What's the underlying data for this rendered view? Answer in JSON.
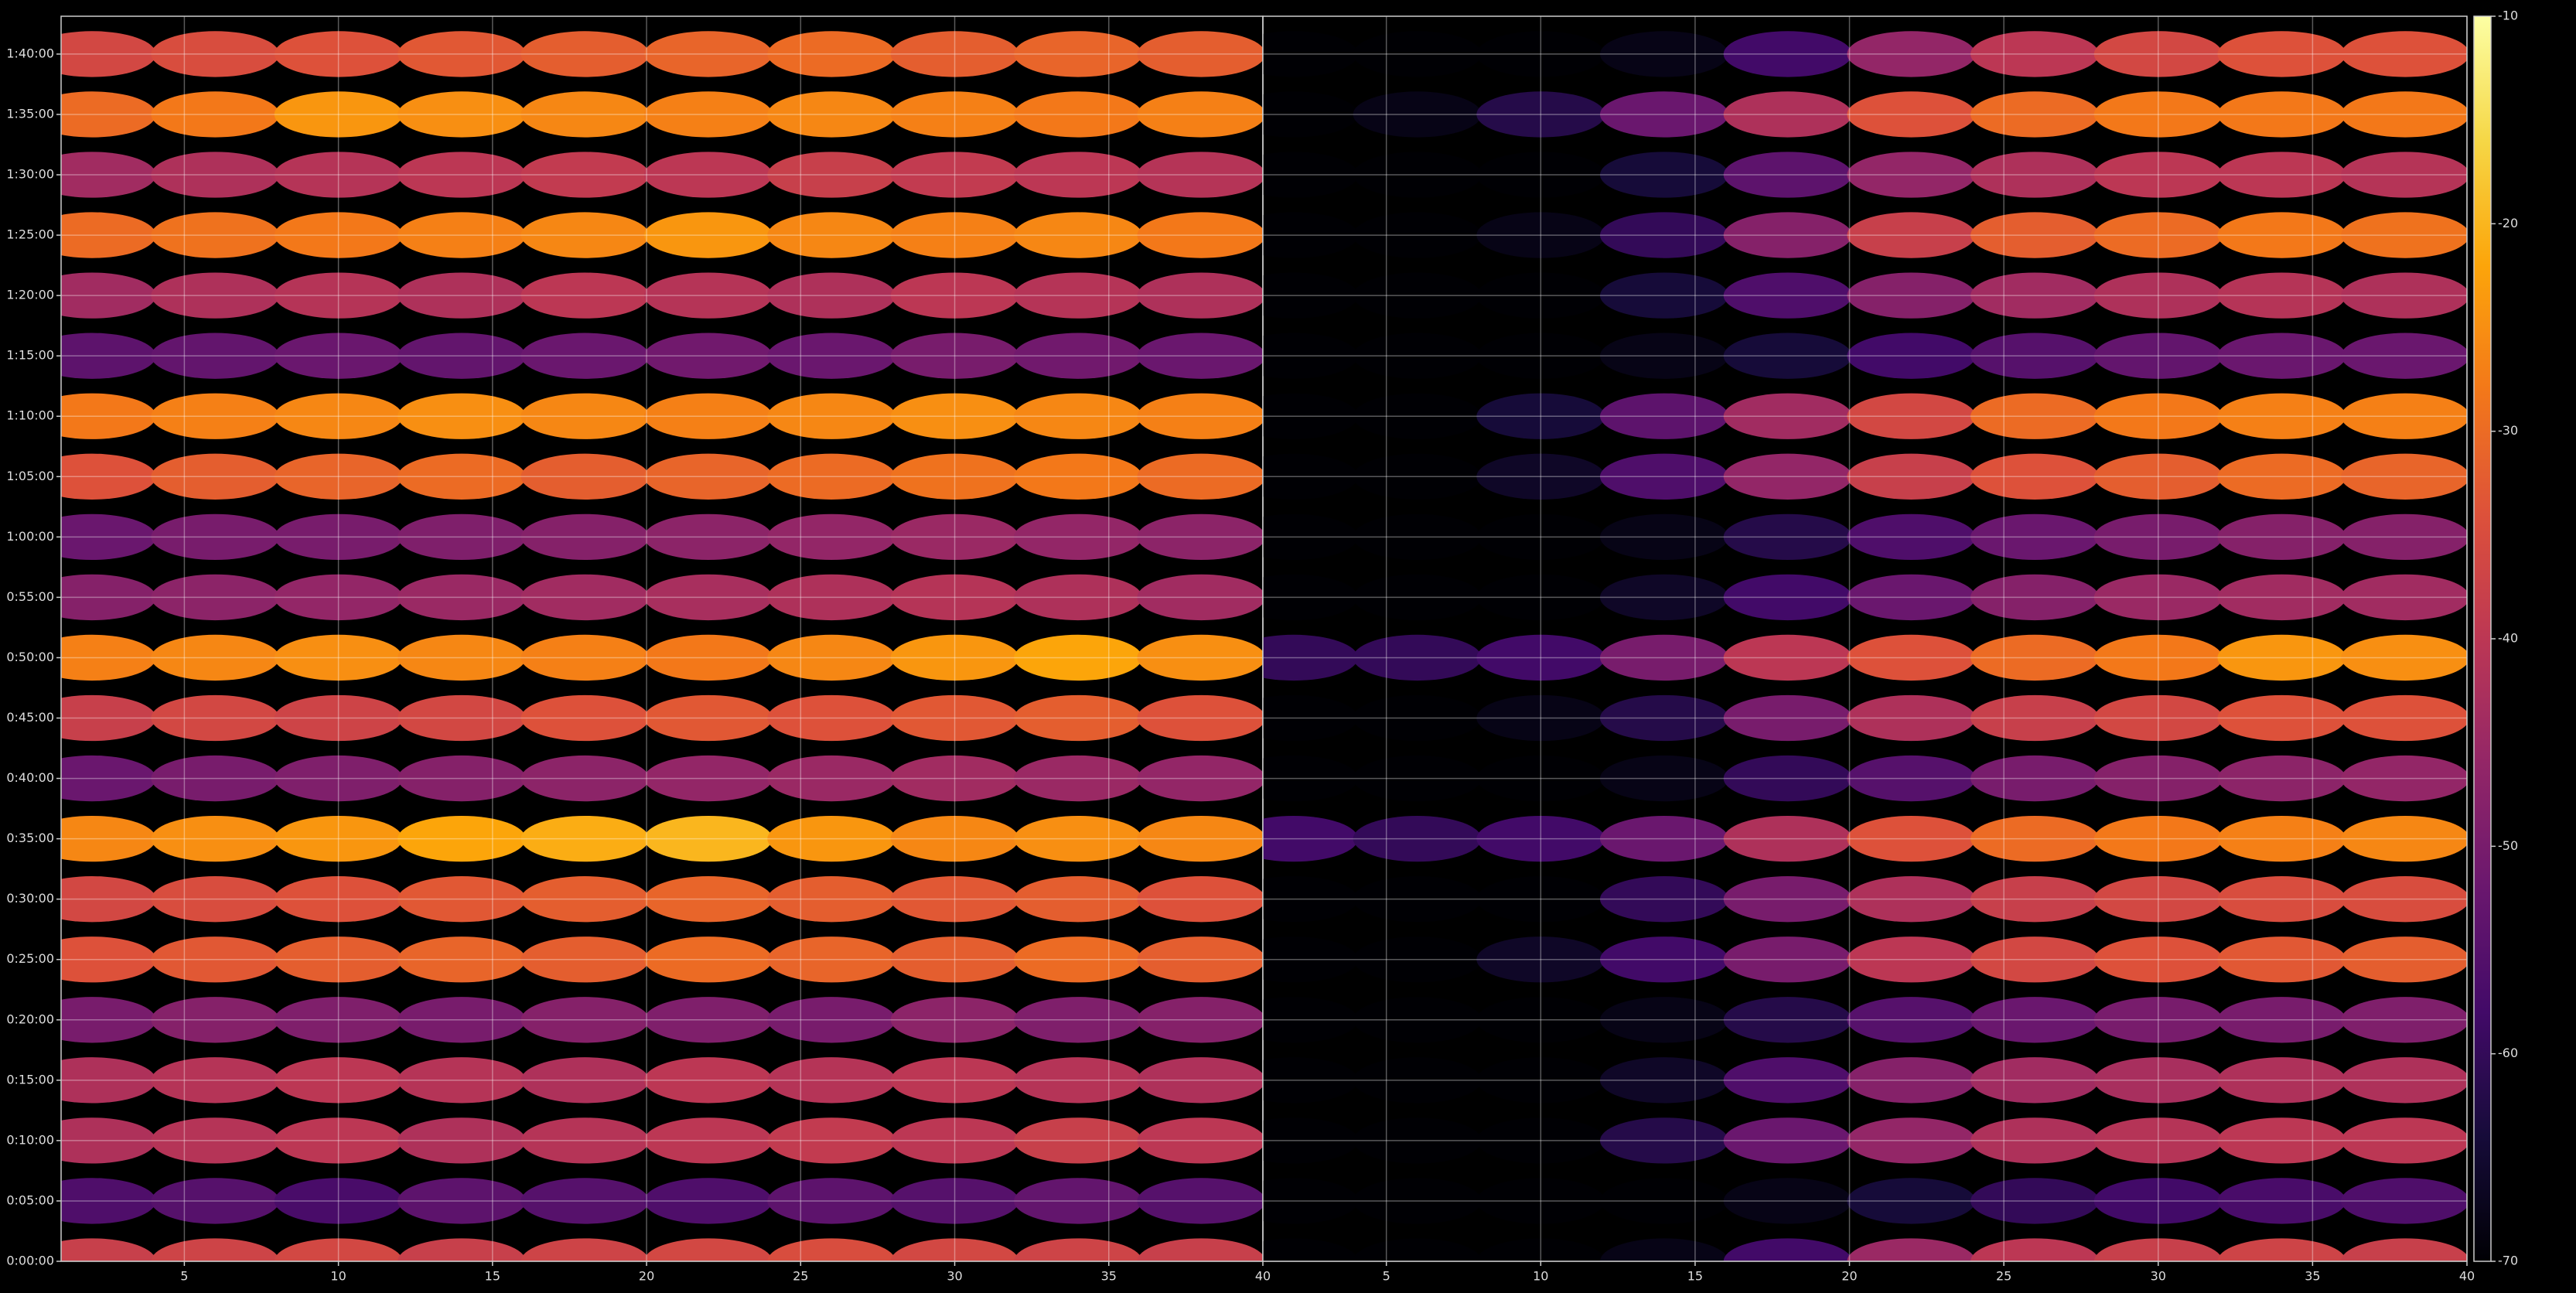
{
  "chart_data": [
    {
      "type": "heatmap",
      "x": [
        2,
        6,
        10,
        14,
        18,
        22,
        26,
        30,
        34,
        38
      ],
      "y": [
        0,
        300,
        600,
        900,
        1200,
        1500,
        1800,
        2100,
        2400,
        2700,
        3000,
        3300,
        3600,
        3900,
        4200,
        4500,
        4800,
        5100,
        5400,
        5700,
        6000
      ],
      "values": [
        [
          -38,
          -37,
          -36,
          -38,
          -37,
          -36,
          -35,
          -36,
          -37,
          -38
        ],
        [
          -56,
          -55,
          -57,
          -54,
          -55,
          -56,
          -54,
          -55,
          -53,
          -55
        ],
        [
          -42,
          -41,
          -40,
          -42,
          -41,
          -40,
          -39,
          -40,
          -38,
          -40
        ],
        [
          -42,
          -41,
          -40,
          -41,
          -42,
          -40,
          -41,
          -40,
          -41,
          -42
        ],
        [
          -50,
          -48,
          -49,
          -50,
          -48,
          -49,
          -50,
          -47,
          -49,
          -48
        ],
        [
          -34,
          -33,
          -32,
          -31,
          -32,
          -30,
          -31,
          -32,
          -30,
          -32
        ],
        [
          -36,
          -35,
          -34,
          -33,
          -32,
          -31,
          -32,
          -33,
          -32,
          -34
        ],
        [
          -26,
          -25,
          -24,
          -22,
          -21,
          -20,
          -24,
          -26,
          -25,
          -26
        ],
        [
          -52,
          -50,
          -49,
          -48,
          -47,
          -46,
          -45,
          -44,
          -45,
          -46
        ],
        [
          -38,
          -36,
          -37,
          -36,
          -34,
          -33,
          -34,
          -33,
          -32,
          -34
        ],
        [
          -27,
          -26,
          -25,
          -26,
          -27,
          -28,
          -26,
          -24,
          -22,
          -25
        ],
        [
          -48,
          -47,
          -46,
          -45,
          -44,
          -43,
          -42,
          -41,
          -42,
          -44
        ],
        [
          -52,
          -50,
          -50,
          -49,
          -48,
          -47,
          -46,
          -45,
          -46,
          -47
        ],
        [
          -34,
          -32,
          -31,
          -30,
          -32,
          -31,
          -30,
          -29,
          -28,
          -30
        ],
        [
          -28,
          -27,
          -26,
          -25,
          -26,
          -27,
          -26,
          -25,
          -26,
          -27
        ],
        [
          -54,
          -53,
          -52,
          -53,
          -52,
          -51,
          -52,
          -50,
          -51,
          -52
        ],
        [
          -44,
          -42,
          -41,
          -42,
          -40,
          -41,
          -42,
          -40,
          -41,
          -42
        ],
        [
          -30,
          -29,
          -28,
          -27,
          -26,
          -24,
          -26,
          -27,
          -26,
          -28
        ],
        [
          -44,
          -42,
          -41,
          -40,
          -39,
          -40,
          -38,
          -39,
          -40,
          -41
        ],
        [
          -30,
          -28,
          -24,
          -25,
          -26,
          -27,
          -26,
          -27,
          -28,
          -27
        ],
        [
          -36,
          -35,
          -34,
          -33,
          -32,
          -31,
          -30,
          -32,
          -31,
          -32
        ]
      ],
      "xlim": [
        1,
        40
      ],
      "xticks": [
        5,
        10,
        15,
        20,
        25,
        30,
        35,
        40
      ],
      "ylim": [
        0,
        6188
      ],
      "yticks": [
        {
          "value": 0,
          "label": "0:00:00"
        },
        {
          "value": 300,
          "label": "0:05:00"
        },
        {
          "value": 600,
          "label": "0:10:00"
        },
        {
          "value": 900,
          "label": "0:15:00"
        },
        {
          "value": 1200,
          "label": "0:20:00"
        },
        {
          "value": 1500,
          "label": "0:25:00"
        },
        {
          "value": 1800,
          "label": "0:30:00"
        },
        {
          "value": 2100,
          "label": "0:35:00"
        },
        {
          "value": 2400,
          "label": "0:40:00"
        },
        {
          "value": 2700,
          "label": "0:45:00"
        },
        {
          "value": 3000,
          "label": "0:50:00"
        },
        {
          "value": 3300,
          "label": "0:55:00"
        },
        {
          "value": 3600,
          "label": "1:00:00"
        },
        {
          "value": 3900,
          "label": "1:05:00"
        },
        {
          "value": 4200,
          "label": "1:10:00"
        },
        {
          "value": 4500,
          "label": "1:15:00"
        },
        {
          "value": 4800,
          "label": "1:20:00"
        },
        {
          "value": 5100,
          "label": "1:25:00"
        },
        {
          "value": 5400,
          "label": "1:30:00"
        },
        {
          "value": 5700,
          "label": "1:35:00"
        },
        {
          "value": 6000,
          "label": "1:40:00"
        }
      ],
      "grid": true,
      "cmap": "inferno",
      "clim": [
        -70,
        -10
      ]
    },
    {
      "type": "heatmap",
      "x": [
        2,
        6,
        10,
        14,
        18,
        22,
        26,
        30,
        34,
        38
      ],
      "y": [
        0,
        300,
        600,
        900,
        1200,
        1500,
        1800,
        2100,
        2400,
        2700,
        3000,
        3300,
        3600,
        3900,
        4200,
        4500,
        4800,
        5100,
        5400,
        5700,
        6000
      ],
      "values": [
        [
          -70,
          -70,
          -70,
          -68,
          -58,
          -45,
          -40,
          -38,
          -37,
          -38
        ],
        [
          -70,
          -70,
          -70,
          -70,
          -68,
          -64,
          -60,
          -58,
          -57,
          -56
        ],
        [
          -70,
          -70,
          -70,
          -62,
          -52,
          -46,
          -42,
          -41,
          -40,
          -40
        ],
        [
          -70,
          -70,
          -70,
          -66,
          -56,
          -48,
          -44,
          -43,
          -42,
          -42
        ],
        [
          -70,
          -70,
          -70,
          -68,
          -62,
          -55,
          -52,
          -50,
          -50,
          -49
        ],
        [
          -70,
          -70,
          -66,
          -58,
          -50,
          -40,
          -36,
          -34,
          -33,
          -32
        ],
        [
          -70,
          -70,
          -70,
          -60,
          -50,
          -42,
          -38,
          -36,
          -35,
          -35
        ],
        [
          -58,
          -60,
          -58,
          -52,
          -42,
          -34,
          -30,
          -28,
          -27,
          -26
        ],
        [
          -70,
          -70,
          -70,
          -68,
          -60,
          -55,
          -50,
          -48,
          -47,
          -46
        ],
        [
          -70,
          -70,
          -68,
          -62,
          -50,
          -42,
          -38,
          -36,
          -34,
          -34
        ],
        [
          -60,
          -60,
          -58,
          -50,
          -40,
          -34,
          -30,
          -28,
          -24,
          -25
        ],
        [
          -70,
          -70,
          -70,
          -66,
          -58,
          -52,
          -48,
          -45,
          -44,
          -44
        ],
        [
          -70,
          -70,
          -70,
          -68,
          -62,
          -56,
          -52,
          -50,
          -48,
          -48
        ],
        [
          -70,
          -70,
          -66,
          -56,
          -46,
          -38,
          -34,
          -32,
          -30,
          -31
        ],
        [
          -70,
          -70,
          -64,
          -54,
          -44,
          -36,
          -30,
          -28,
          -27,
          -27
        ],
        [
          -70,
          -70,
          -70,
          -68,
          -64,
          -58,
          -55,
          -53,
          -52,
          -52
        ],
        [
          -70,
          -70,
          -70,
          -64,
          -56,
          -48,
          -44,
          -42,
          -41,
          -42
        ],
        [
          -70,
          -70,
          -68,
          -60,
          -48,
          -38,
          -32,
          -30,
          -28,
          -29
        ],
        [
          -70,
          -70,
          -70,
          -64,
          -54,
          -46,
          -42,
          -40,
          -40,
          -41
        ],
        [
          -70,
          -68,
          -62,
          -52,
          -42,
          -34,
          -30,
          -28,
          -28,
          -28
        ],
        [
          -70,
          -70,
          -70,
          -68,
          -58,
          -46,
          -40,
          -36,
          -34,
          -34
        ]
      ],
      "xlim": [
        1,
        40
      ],
      "xticks": [
        5,
        10,
        15,
        20,
        25,
        30,
        35,
        40
      ],
      "ylim": [
        0,
        6188
      ],
      "sharey": true,
      "grid": true,
      "cmap": "inferno",
      "clim": [
        -70,
        -10
      ],
      "colorbar": {
        "lim": [
          -70,
          -10
        ],
        "ticks": [
          -70,
          -60,
          -50,
          -40,
          -30,
          -20,
          -10
        ]
      }
    }
  ]
}
